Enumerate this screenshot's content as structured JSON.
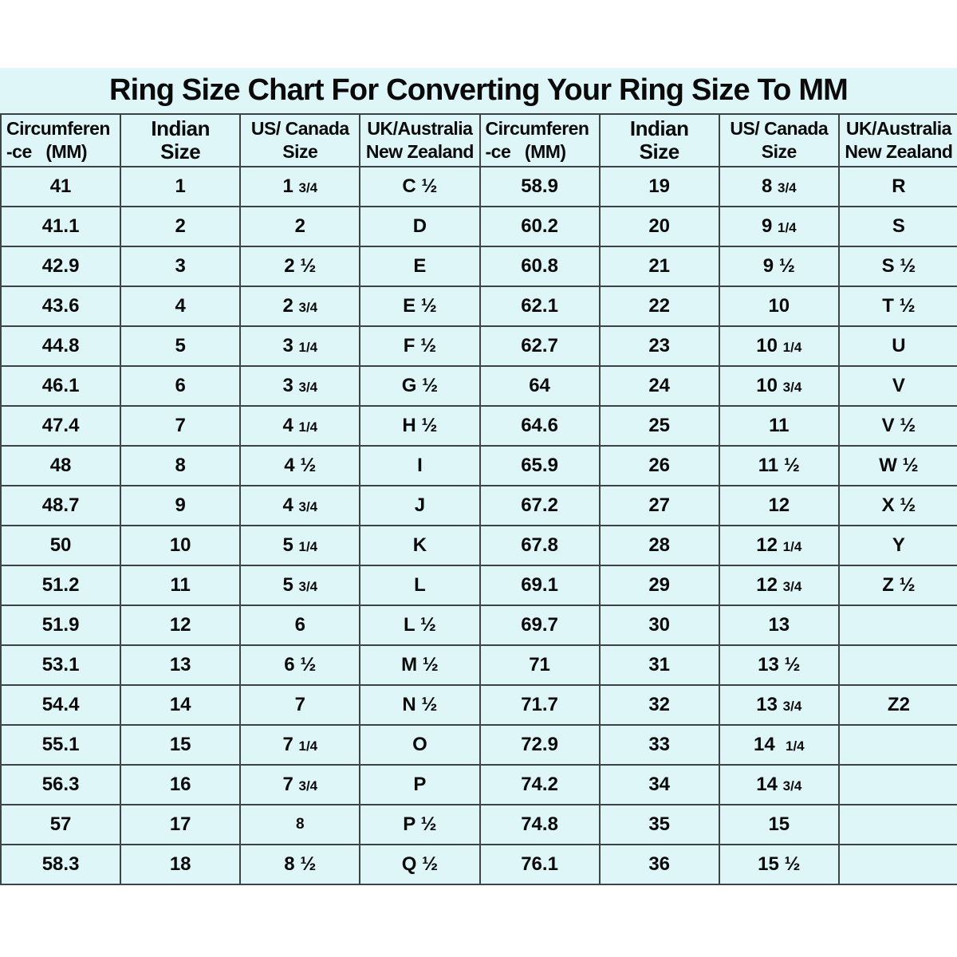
{
  "title": "Ring Size Chart For Converting Your Ring Size To MM",
  "colors": {
    "page_background": "#ffffff",
    "panel_background": "#dff6f8",
    "grid_line": "#3e4446",
    "text": "#0a0a0a"
  },
  "chart_data": {
    "type": "table",
    "title": "Ring Size Chart For Converting Your Ring Size To MM",
    "column_headers": [
      "Circumferen-ce (MM)",
      "Indian Size",
      "US/ Canada Size",
      "UK/Australia New Zealand",
      "Circumferen-ce (MM)",
      "Indian Size",
      "US/ Canada Size",
      "UK/Australia New Zealand"
    ],
    "header_lines": [
      [
        "Circumferen",
        "-ce   (MM)"
      ],
      [
        "Indian",
        "Size"
      ],
      [
        "US/ Canada",
        "Size"
      ],
      [
        "UK/Australia",
        "New Zealand"
      ],
      [
        "Circumferen",
        "-ce   (MM)"
      ],
      [
        "Indian",
        "Size"
      ],
      [
        "US/ Canada",
        "Size"
      ],
      [
        "UK/Australia",
        "New Zealand"
      ]
    ],
    "rows": [
      [
        "41",
        "1",
        "1 3/4",
        "C ½",
        "58.9",
        "19",
        "8 3/4",
        "R"
      ],
      [
        "41.1",
        "2",
        "2",
        "D",
        "60.2",
        "20",
        "9 1/4",
        "S"
      ],
      [
        "42.9",
        "3",
        "2 ½",
        "E",
        "60.8",
        "21",
        "9 ½",
        "S ½"
      ],
      [
        "43.6",
        "4",
        "2 3/4",
        "E ½",
        "62.1",
        "22",
        "10",
        "T ½"
      ],
      [
        "44.8",
        "5",
        "3 1/4",
        "F ½",
        "62.7",
        "23",
        "10 1/4",
        "U"
      ],
      [
        "46.1",
        "6",
        "3 3/4",
        "G ½",
        "64",
        "24",
        "10 3/4",
        "V"
      ],
      [
        "47.4",
        "7",
        "4 1/4",
        "H ½",
        "64.6",
        "25",
        "11",
        "V ½"
      ],
      [
        "48",
        "8",
        "4 ½",
        "I",
        "65.9",
        "26",
        "11 ½",
        "W ½"
      ],
      [
        "48.7",
        "9",
        "4 3/4",
        "J",
        "67.2",
        "27",
        "12",
        "X ½"
      ],
      [
        "50",
        "10",
        "5 1/4",
        "K",
        "67.8",
        "28",
        "12 1/4",
        "Y"
      ],
      [
        "51.2",
        "11",
        "5 3/4",
        "L",
        "69.1",
        "29",
        "12 3/4",
        "Z ½"
      ],
      [
        "51.9",
        "12",
        "6",
        "L ½",
        "69.7",
        "30",
        "13",
        ""
      ],
      [
        "53.1",
        "13",
        "6 ½",
        "M ½",
        "71",
        "31",
        "13 ½",
        ""
      ],
      [
        "54.4",
        "14",
        "7",
        "N ½",
        "71.7",
        "32",
        "13 3/4",
        "Z2"
      ],
      [
        "55.1",
        "15",
        "7 1/4",
        "O",
        "72.9",
        "33",
        "14  1/4",
        ""
      ],
      [
        "56.3",
        "16",
        "7 3/4",
        "P",
        "74.2",
        "34",
        "14 3/4",
        ""
      ],
      [
        "57",
        "17",
        "8",
        "P ½",
        "74.8",
        "35",
        "15",
        ""
      ],
      [
        "58.3",
        "18",
        "8 ½",
        "Q ½",
        "76.1",
        "36",
        "15 ½",
        ""
      ]
    ]
  }
}
